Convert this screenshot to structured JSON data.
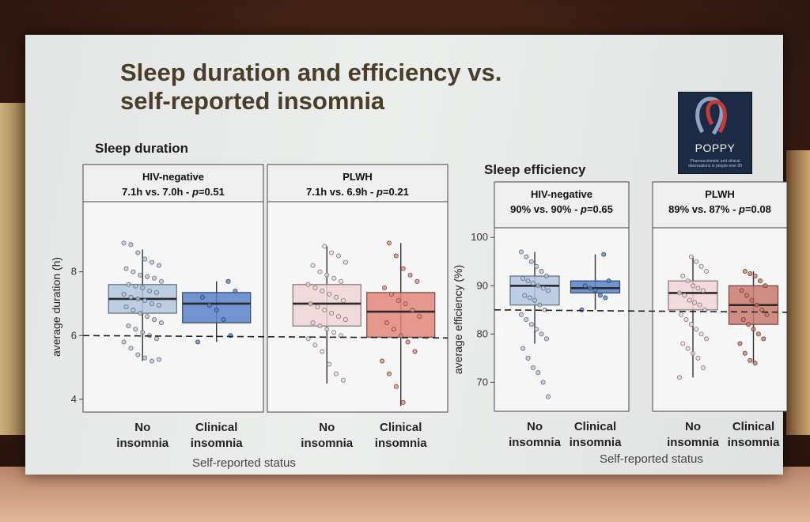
{
  "slide": {
    "title_line1": "Sleep duration and efficiency vs.",
    "title_line2": "self-reported insomnia",
    "logo_text": "POPPY",
    "logo_subtext": "Pharmacokinetic and clinical observations in people over 50"
  },
  "chart_data": [
    {
      "type": "box",
      "title": "Sleep duration",
      "ylabel": "average duration (h)",
      "xlabel": "Self-reported status",
      "ylim": [
        3.6,
        10.2
      ],
      "yticks": [
        4,
        6,
        8
      ],
      "reference_line": 6,
      "categories": [
        "No insomnia",
        "Clinical insomnia"
      ],
      "category_lines": [
        [
          "No",
          "insomnia"
        ],
        [
          "Clinical",
          "insomnia"
        ]
      ],
      "panels": [
        {
          "group": "HIV-negative",
          "summary_parts": [
            "7.1h vs. 7.0h - ",
            "p",
            "=0.51"
          ],
          "boxes": [
            {
              "category": "No insomnia",
              "min": 5.2,
              "q1": 6.7,
              "median": 7.15,
              "q3": 7.6,
              "max": 8.7,
              "color": "#b3c5de",
              "points": [
                8.9,
                8.85,
                8.6,
                8.4,
                8.3,
                8.2,
                8.1,
                8.0,
                7.9,
                7.85,
                7.8,
                7.7,
                7.6,
                7.55,
                7.5,
                7.4,
                7.35,
                7.3,
                7.2,
                7.15,
                7.1,
                7.0,
                6.95,
                6.9,
                6.8,
                6.7,
                6.6,
                6.5,
                6.4,
                6.3,
                6.2,
                6.1,
                6.0,
                5.9,
                5.8,
                5.6,
                5.4,
                5.3,
                5.2,
                5.25
              ]
            },
            {
              "category": "Clinical insomnia",
              "min": 5.8,
              "q1": 6.4,
              "median": 7.0,
              "q3": 7.35,
              "max": 7.7,
              "color": "#5a82c9",
              "points": [
                7.7,
                7.4,
                7.2,
                6.95,
                6.8,
                6.5,
                6.0,
                5.8
              ]
            }
          ]
        },
        {
          "group": "PLWH",
          "summary_parts": [
            "7.1h vs. 6.9h - ",
            "p",
            "=0.21"
          ],
          "boxes": [
            {
              "category": "No insomnia",
              "min": 4.5,
              "q1": 6.3,
              "median": 7.0,
              "q3": 7.6,
              "max": 8.8,
              "color": "#f0d5d6",
              "points": [
                8.8,
                8.6,
                8.5,
                8.3,
                8.2,
                8.0,
                7.9,
                7.8,
                7.7,
                7.6,
                7.5,
                7.4,
                7.3,
                7.2,
                7.1,
                7.0,
                6.9,
                6.8,
                6.7,
                6.6,
                6.5,
                6.4,
                6.3,
                6.2,
                6.1,
                6.0,
                5.9,
                5.7,
                5.5,
                5.1,
                4.8,
                4.6
              ]
            },
            {
              "category": "Clinical insomnia",
              "min": 3.8,
              "q1": 5.95,
              "median": 6.75,
              "q3": 7.35,
              "max": 8.9,
              "color": "#e3877d",
              "points": [
                8.9,
                8.5,
                8.1,
                7.9,
                7.7,
                7.5,
                7.3,
                7.1,
                7.0,
                6.8,
                6.6,
                6.4,
                6.2,
                6.0,
                5.8,
                5.5,
                5.2,
                4.8,
                4.4,
                3.9
              ]
            }
          ]
        }
      ]
    },
    {
      "type": "box",
      "title": "Sleep efficiency",
      "ylabel": "average efficiency (%)",
      "xlabel": "Self-reported status",
      "ylim": [
        64,
        102
      ],
      "yticks": [
        70,
        80,
        90,
        100
      ],
      "reference_line": 85,
      "categories": [
        "No insomnia",
        "Clinical insomnia"
      ],
      "category_lines": [
        [
          "No",
          "insomnia"
        ],
        [
          "Clinical",
          "insomnia"
        ]
      ],
      "panels": [
        {
          "group": "HIV-negative",
          "summary_parts": [
            "90% vs. 90% - ",
            "p",
            "=0.65"
          ],
          "boxes": [
            {
              "category": "No insomnia",
              "min": 78,
              "q1": 86,
              "median": 90,
              "q3": 92,
              "max": 97,
              "color": "#b3c5de",
              "points": [
                97,
                96,
                95,
                94,
                93,
                92,
                91.5,
                91,
                90.5,
                90,
                89.5,
                89,
                88,
                87.5,
                87,
                86,
                85,
                84,
                83,
                82,
                81,
                80,
                79,
                77,
                75,
                73,
                72,
                70,
                67
              ]
            },
            {
              "category": "Clinical insomnia",
              "min": 85,
              "q1": 88.5,
              "median": 89.5,
              "q3": 91,
              "max": 96.5,
              "color": "#5a82c9",
              "points": [
                96.5,
                91,
                90,
                89.5,
                89,
                88,
                87.5,
                85
              ]
            }
          ]
        },
        {
          "group": "PLWH",
          "summary_parts": [
            "89% vs. 87% - ",
            "p",
            "=0.08"
          ],
          "boxes": [
            {
              "category": "No insomnia",
              "min": 71,
              "q1": 85,
              "median": 88.5,
              "q3": 91,
              "max": 96,
              "color": "#f0d5d6",
              "points": [
                96,
                95,
                94,
                93,
                92,
                91,
                90,
                89.5,
                89,
                88.5,
                88,
                87,
                86.5,
                86,
                85,
                84,
                83,
                82,
                81,
                80,
                79,
                78,
                77,
                76,
                75,
                73,
                71
              ]
            },
            {
              "category": "Clinical insomnia",
              "min": 74,
              "q1": 82,
              "median": 86,
              "q3": 90,
              "max": 93,
              "color": "#c97a6e",
              "points": [
                93,
                92.5,
                92,
                91,
                90,
                89,
                88,
                87,
                86,
                85,
                84,
                83,
                82,
                81,
                80,
                79,
                78,
                76,
                74.5,
                74
              ]
            }
          ]
        }
      ]
    }
  ]
}
